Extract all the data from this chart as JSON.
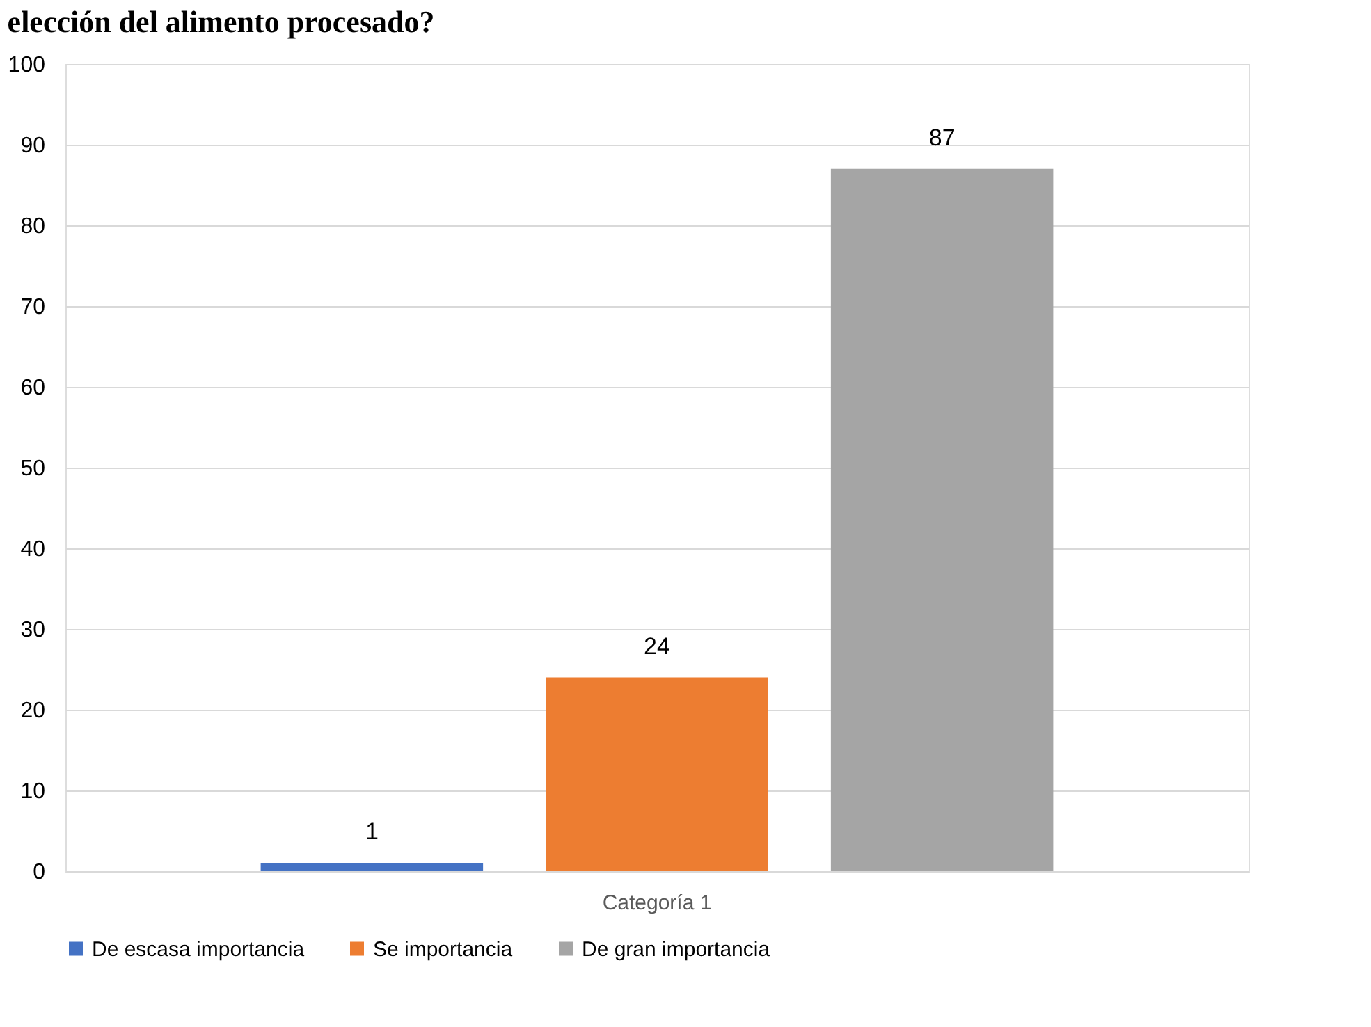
{
  "chart_data": {
    "type": "bar",
    "title": "elección del alimento procesado?",
    "categories": [
      "Categoría 1"
    ],
    "series": [
      {
        "name": "De escasa importancia",
        "color": "#4472c4",
        "values": [
          1
        ]
      },
      {
        "name": "Se importancia",
        "color": "#ed7d31",
        "values": [
          24
        ]
      },
      {
        "name": "De gran importancia",
        "color": "#a5a5a5",
        "values": [
          87
        ]
      }
    ],
    "ylim": [
      0,
      100
    ],
    "yticks": [
      0,
      10,
      20,
      30,
      40,
      50,
      60,
      70,
      80,
      90,
      100
    ],
    "grid": "y",
    "legend": "bottom",
    "data_labels": true
  }
}
